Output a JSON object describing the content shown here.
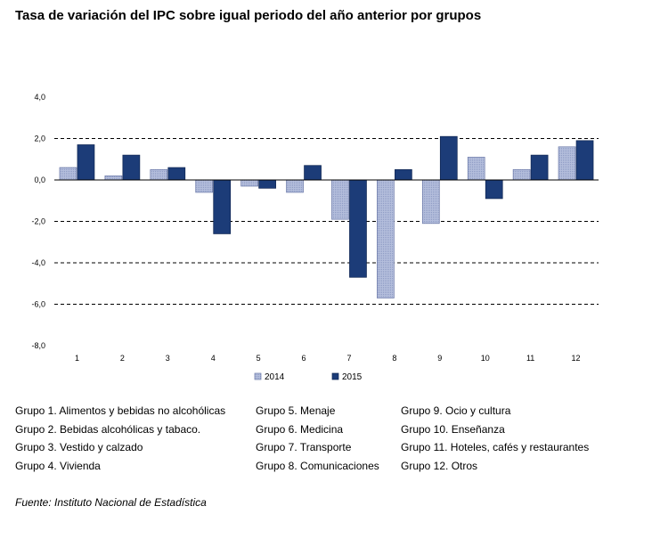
{
  "title": "Tasa de variación del IPC sobre igual periodo del año anterior por grupos",
  "source": "Fuente: Instituto Nacional de Estadística",
  "colors": {
    "s2014": "#b4bedc",
    "s2015": "#1c3c78",
    "grid": "#000000"
  },
  "groups_legend": [
    [
      "Grupo 1. Alimentos y bebidas no alcohólicas",
      "Grupo 2. Bebidas alcohólicas y  tabaco.",
      "Grupo 3. Vestido y calzado",
      "Grupo 4. Vivienda"
    ],
    [
      "Grupo 5. Menaje",
      "Grupo 6. Medicina",
      "Grupo 7. Transporte",
      "Grupo 8. Comunicaciones"
    ],
    [
      "Grupo 9. Ocio y cultura",
      "Grupo 10. Enseñanza",
      "Grupo 11. Hoteles, cafés y restaurantes",
      "Grupo 12. Otros"
    ]
  ],
  "chart_data": {
    "type": "bar",
    "title": "Tasa de variación del IPC sobre igual periodo del año anterior por grupos",
    "categories": [
      "1",
      "2",
      "3",
      "4",
      "5",
      "6",
      "7",
      "8",
      "9",
      "10",
      "11",
      "12"
    ],
    "series": [
      {
        "name": "2014",
        "values": [
          0.6,
          0.2,
          0.5,
          -0.6,
          -0.3,
          -0.6,
          -1.9,
          -5.7,
          -2.1,
          1.1,
          0.5,
          1.6
        ]
      },
      {
        "name": "2015",
        "values": [
          1.7,
          1.2,
          0.6,
          -2.6,
          -0.4,
          0.7,
          -4.7,
          0.5,
          2.1,
          -0.9,
          1.2,
          1.9
        ]
      }
    ],
    "ylim": [
      -8,
      4
    ],
    "yticks": [
      "4,0",
      "2,0",
      "0,0",
      "-2,0",
      "-4,0",
      "-6,0",
      "-8,0"
    ],
    "ytick_values": [
      4,
      2,
      0,
      -2,
      -4,
      -6,
      -8
    ],
    "gridlines": [
      2,
      -2,
      -4,
      -6
    ],
    "legend_position": "bottom",
    "xlabel": "",
    "ylabel": ""
  }
}
